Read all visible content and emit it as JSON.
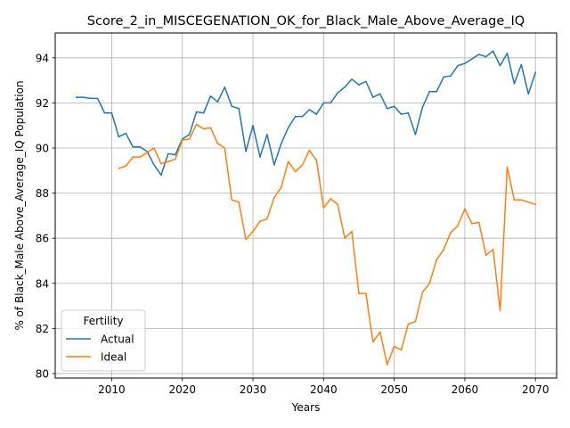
{
  "chart_data": {
    "type": "line",
    "title": "Score_2_in_MISCEGENATION_OK_for_Black_Male_Above_Average_IQ",
    "xlabel": "Years",
    "ylabel": "% of Black_Male Above_Average_IQ Population",
    "xlim": [
      2002,
      2073
    ],
    "ylim": [
      79.8,
      95.1
    ],
    "xticks": [
      2010,
      2020,
      2030,
      2040,
      2050,
      2060,
      2070
    ],
    "yticks": [
      80,
      82,
      84,
      86,
      88,
      90,
      92,
      94
    ],
    "xtick_labels": [
      "2010",
      "2020",
      "2030",
      "2040",
      "2050",
      "2060",
      "2070"
    ],
    "ytick_labels": [
      "80",
      "82",
      "84",
      "86",
      "88",
      "90",
      "92",
      "94"
    ],
    "grid": true,
    "legend": {
      "title": "Fertility",
      "position": "lower-left"
    },
    "series": [
      {
        "name": "Actual",
        "color": "#1f77b4",
        "x": [
          2005,
          2006,
          2007,
          2008,
          2009,
          2010,
          2011,
          2012,
          2013,
          2014,
          2015,
          2016,
          2017,
          2018,
          2019,
          2020,
          2021,
          2022,
          2023,
          2024,
          2025,
          2026,
          2027,
          2028,
          2029,
          2030,
          2031,
          2032,
          2033,
          2034,
          2035,
          2036,
          2037,
          2038,
          2039,
          2040,
          2041,
          2042,
          2043,
          2044,
          2045,
          2046,
          2047,
          2048,
          2049,
          2050,
          2051,
          2052,
          2053,
          2054,
          2055,
          2056,
          2057,
          2058,
          2059,
          2060,
          2061,
          2062,
          2063,
          2064,
          2065,
          2066,
          2067,
          2068,
          2069,
          2070
        ],
        "values": [
          92.25,
          92.25,
          92.2,
          92.2,
          91.55,
          91.55,
          90.5,
          90.65,
          90.05,
          90.05,
          89.85,
          89.25,
          88.8,
          89.75,
          89.7,
          90.4,
          90.6,
          91.6,
          91.55,
          92.3,
          92.05,
          92.7,
          91.85,
          91.75,
          89.85,
          91.0,
          89.6,
          90.6,
          89.25,
          90.2,
          90.9,
          91.4,
          91.4,
          91.7,
          91.5,
          92.0,
          92.0,
          92.45,
          92.7,
          93.05,
          92.8,
          92.95,
          92.25,
          92.4,
          91.75,
          91.85,
          91.5,
          91.55,
          90.6,
          91.8,
          92.5,
          92.5,
          93.15,
          93.2,
          93.65,
          93.75,
          93.95,
          94.15,
          94.05,
          94.3,
          93.65,
          94.2,
          92.85,
          93.7,
          92.4,
          93.35
        ]
      },
      {
        "name": "Ideal",
        "color": "#ff7f0e",
        "x": [
          2011,
          2012,
          2013,
          2014,
          2015,
          2016,
          2017,
          2018,
          2019,
          2020,
          2021,
          2022,
          2023,
          2024,
          2025,
          2026,
          2027,
          2028,
          2029,
          2030,
          2031,
          2032,
          2033,
          2034,
          2035,
          2036,
          2037,
          2038,
          2039,
          2040,
          2041,
          2042,
          2043,
          2044,
          2045,
          2046,
          2047,
          2048,
          2049,
          2050,
          2051,
          2052,
          2053,
          2054,
          2055,
          2056,
          2057,
          2058,
          2059,
          2060,
          2061,
          2062,
          2063,
          2064,
          2065,
          2066,
          2067,
          2068,
          2069,
          2070
        ],
        "values": [
          89.1,
          89.2,
          89.6,
          89.6,
          89.8,
          90.0,
          89.3,
          89.4,
          89.5,
          90.35,
          90.4,
          91.05,
          90.85,
          90.9,
          90.2,
          90.0,
          87.7,
          87.6,
          85.95,
          86.3,
          86.75,
          86.85,
          87.8,
          88.25,
          89.4,
          88.95,
          89.25,
          89.9,
          89.45,
          87.35,
          87.75,
          87.5,
          86.0,
          86.3,
          83.55,
          83.55,
          81.4,
          81.85,
          80.4,
          81.2,
          81.05,
          82.2,
          82.3,
          83.6,
          84.0,
          85.05,
          85.5,
          86.25,
          86.55,
          87.3,
          86.65,
          86.7,
          85.25,
          85.5,
          82.8,
          89.15,
          87.7,
          87.7,
          87.6,
          87.5
        ]
      }
    ]
  }
}
